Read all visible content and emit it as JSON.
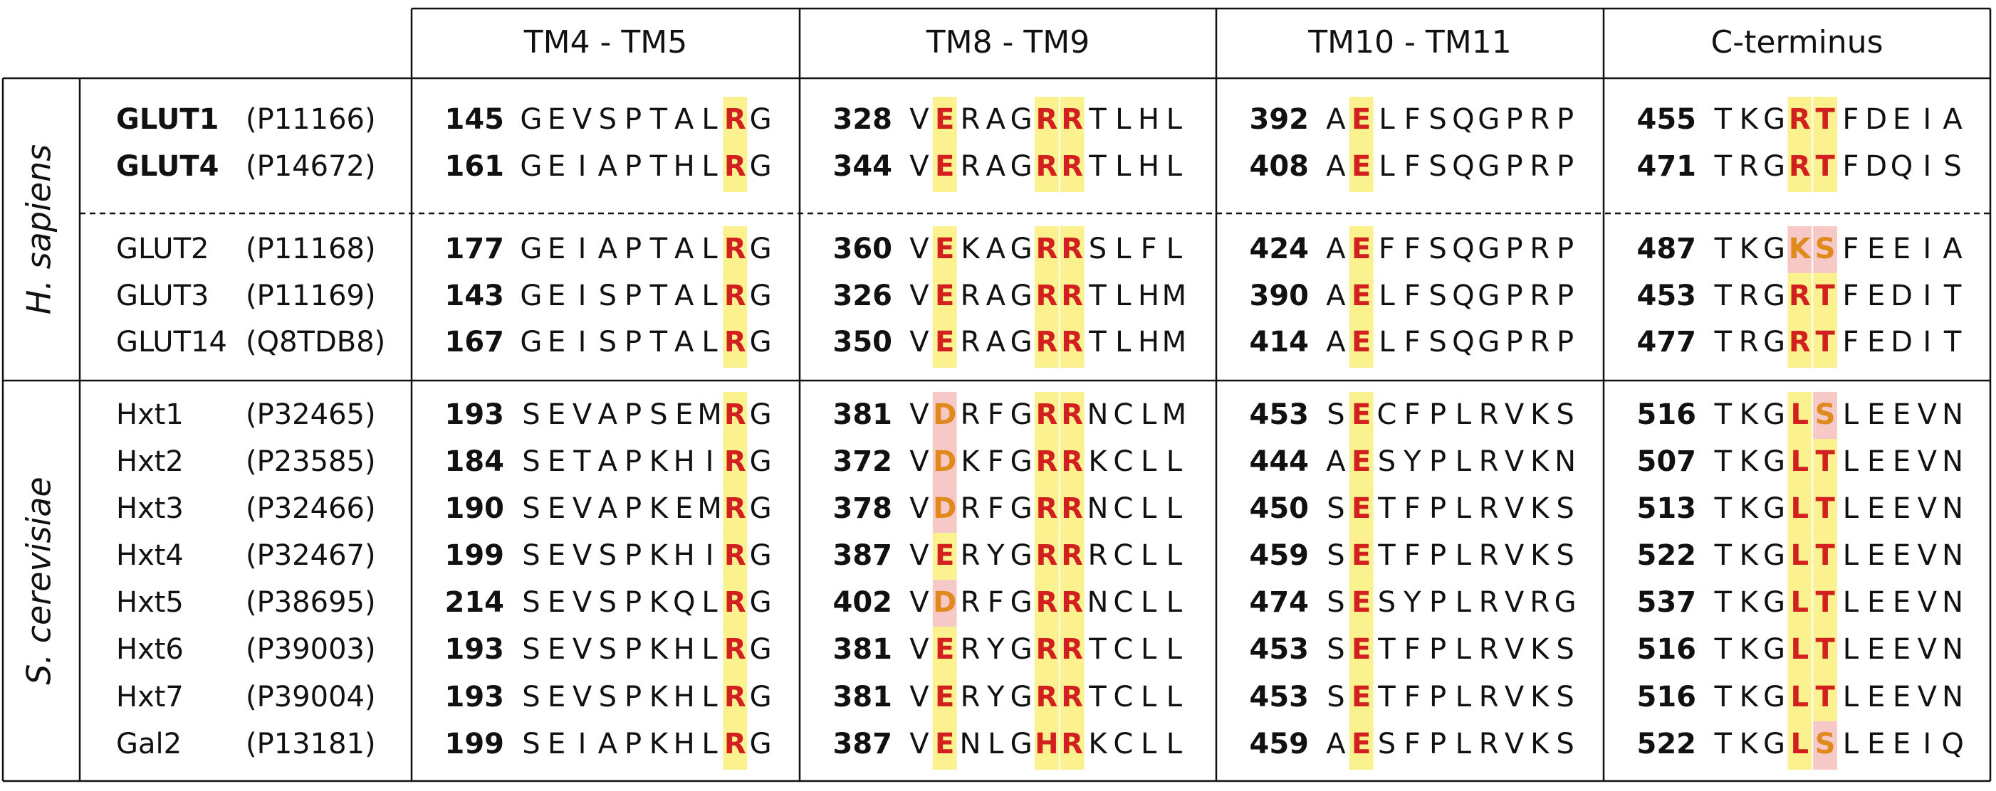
{
  "header": {
    "columns": [
      "TM4 - TM5",
      "TM8 - TM9",
      "TM10 - TM11",
      "C-terminus"
    ]
  },
  "groups": [
    {
      "label": "H. sapiens",
      "rows": [
        {
          "name": "GLUT1",
          "accession": "(P11166)",
          "segments": [
            {
              "start": 145,
              "sequence": "GEVSPTALRG"
            },
            {
              "start": 328,
              "sequence": "VERAGRRTLHL"
            },
            {
              "start": 392,
              "sequence": "AELFSQGPRP"
            },
            {
              "start": 455,
              "sequence": "TKGRTFDEIA"
            }
          ]
        },
        {
          "name": "GLUT4",
          "accession": "(P14672)",
          "segments": [
            {
              "start": 161,
              "sequence": "GEIAPTHLRG"
            },
            {
              "start": 344,
              "sequence": "VERAGRRTLHL"
            },
            {
              "start": 408,
              "sequence": "AELFSQGPRP"
            },
            {
              "start": 471,
              "sequence": "TRGRTFDQIS"
            }
          ]
        },
        {
          "name": "GLUT2",
          "accession": "(P11168)",
          "segments": [
            {
              "start": 177,
              "sequence": "GEIAPTALRG"
            },
            {
              "start": 360,
              "sequence": "VEKAGRRSLFL"
            },
            {
              "start": 424,
              "sequence": "AEFFSQGPRP"
            },
            {
              "start": 487,
              "sequence": "TKGKSFEEIA"
            }
          ]
        },
        {
          "name": "GLUT3",
          "accession": "(P11169)",
          "segments": [
            {
              "start": 143,
              "sequence": "GEISPTALRG"
            },
            {
              "start": 326,
              "sequence": "VERAGRRTLHM"
            },
            {
              "start": 390,
              "sequence": "AELFSQGPRP"
            },
            {
              "start": 453,
              "sequence": "TRGRTFEDIT"
            }
          ]
        },
        {
          "name": "GLUT14",
          "accession": "(Q8TDB8)",
          "segments": [
            {
              "start": 167,
              "sequence": "GEISPTALRG"
            },
            {
              "start": 350,
              "sequence": "VERAGRRTLHM"
            },
            {
              "start": 414,
              "sequence": "AELFSQGPRP"
            },
            {
              "start": 477,
              "sequence": "TRGRTFEDIT"
            }
          ]
        }
      ]
    },
    {
      "label": "S. cerevisiae",
      "rows": [
        {
          "name": "Hxt1",
          "accession": "(P32465)",
          "segments": [
            {
              "start": 193,
              "sequence": "SEVAPSEMRG"
            },
            {
              "start": 381,
              "sequence": "VDRFGRRNCLM"
            },
            {
              "start": 453,
              "sequence": "SECFPLRVKS"
            },
            {
              "start": 516,
              "sequence": "TKGLSLEEVN"
            }
          ]
        },
        {
          "name": "Hxt2",
          "accession": "(P23585)",
          "segments": [
            {
              "start": 184,
              "sequence": "SETAPKHIRG"
            },
            {
              "start": 372,
              "sequence": "VDKFGRRKCLL"
            },
            {
              "start": 444,
              "sequence": "AESYPLRVKN"
            },
            {
              "start": 507,
              "sequence": "TKGLTLEEVN"
            }
          ]
        },
        {
          "name": "Hxt3",
          "accession": "(P32466)",
          "segments": [
            {
              "start": 190,
              "sequence": "SEVAPKEMRG"
            },
            {
              "start": 378,
              "sequence": "VDRFGRRNCLL"
            },
            {
              "start": 450,
              "sequence": "SETFPLRVKS"
            },
            {
              "start": 513,
              "sequence": "TKGLTLEEVN"
            }
          ]
        },
        {
          "name": "Hxt4",
          "accession": "(P32467)",
          "segments": [
            {
              "start": 199,
              "sequence": "SEVSPKHIRG"
            },
            {
              "start": 387,
              "sequence": "VERYGRRRCLL"
            },
            {
              "start": 459,
              "sequence": "SETFPLRVKS"
            },
            {
              "start": 522,
              "sequence": "TKGLTLEEVN"
            }
          ]
        },
        {
          "name": "Hxt5",
          "accession": "(P38695)",
          "segments": [
            {
              "start": 214,
              "sequence": "SEVSPKQLRG"
            },
            {
              "start": 402,
              "sequence": "VDRFGRRNCLL"
            },
            {
              "start": 474,
              "sequence": "SESYPLRVRG"
            },
            {
              "start": 537,
              "sequence": "TKGLTLEEVN"
            }
          ]
        },
        {
          "name": "Hxt6",
          "accession": "(P39003)",
          "segments": [
            {
              "start": 193,
              "sequence": "SEVSPKHLRG"
            },
            {
              "start": 381,
              "sequence": "VERYGRRTCLL"
            },
            {
              "start": 453,
              "sequence": "SETFPLRVKS"
            },
            {
              "start": 516,
              "sequence": "TKGLTLEEVN"
            }
          ]
        },
        {
          "name": "Hxt7",
          "accession": "(P39004)",
          "segments": [
            {
              "start": 193,
              "sequence": "SEVSPKHLRG"
            },
            {
              "start": 381,
              "sequence": "VERYGRRTCLL"
            },
            {
              "start": 453,
              "sequence": "SETFPLRVKS"
            },
            {
              "start": 516,
              "sequence": "TKGLTLEEVN"
            }
          ]
        },
        {
          "name": "Gal2",
          "accession": "(P13181)",
          "segments": [
            {
              "start": 199,
              "sequence": "SEIAPKHLRG"
            },
            {
              "start": 387,
              "sequence": "VENLGHRKCLL"
            },
            {
              "start": 459,
              "sequence": "AESFPLRVKS"
            },
            {
              "start": 522,
              "sequence": "TKGLSLEEIQ"
            }
          ]
        }
      ]
    }
  ]
}
